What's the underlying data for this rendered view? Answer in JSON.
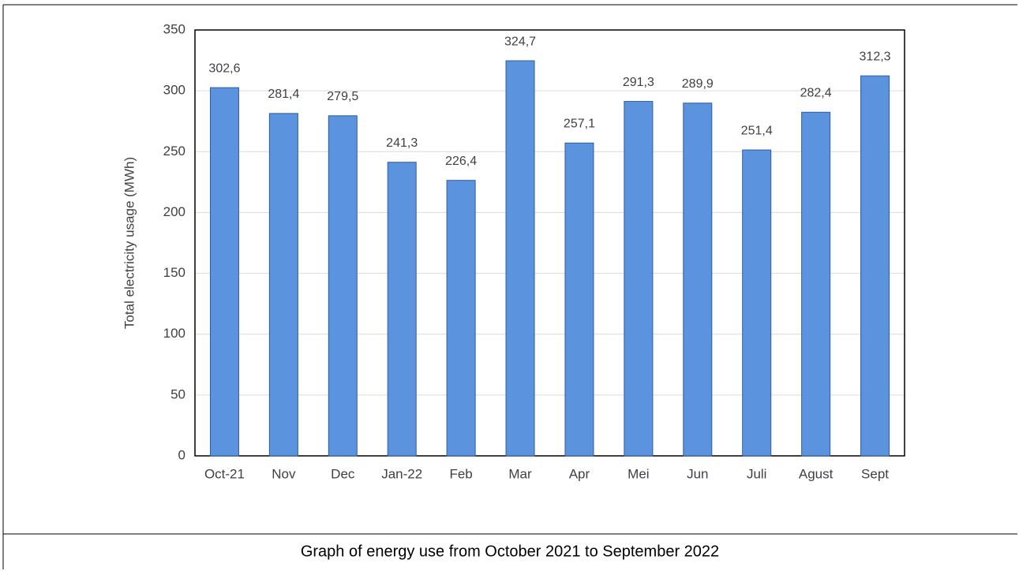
{
  "chart_data": {
    "type": "bar",
    "y_label": "Total electricity usage (MWh)",
    "caption": "Graph of energy use from October 2021 to September 2022",
    "categories": [
      "Oct-21",
      "Nov",
      "Dec",
      "Jan-22",
      "Feb",
      "Mar",
      "Apr",
      "Mei",
      "Jun",
      "Juli",
      "Agust",
      "Sept"
    ],
    "values": [
      302.6,
      281.4,
      279.5,
      241.3,
      226.4,
      324.7,
      257.1,
      291.3,
      289.9,
      251.4,
      282.4,
      312.3
    ],
    "value_labels": [
      "302,6",
      "281,4",
      "279,5",
      "241,3",
      "226,4",
      "324,7",
      "257,1",
      "291,3",
      "289,9",
      "251,4",
      "282,4",
      "312,3"
    ],
    "color": "#5b93de",
    "ylim": [
      0,
      350
    ],
    "yticks": [
      0,
      50,
      100,
      150,
      200,
      250,
      300,
      350
    ],
    "grid": true
  }
}
